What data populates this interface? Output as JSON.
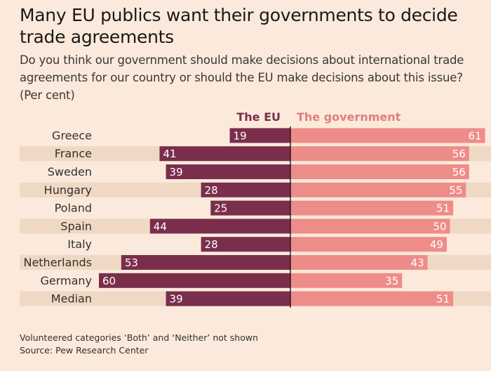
{
  "chart_data": {
    "type": "bar",
    "title": "Many EU publics want their governments to decide trade agreements",
    "subtitle": "Do you think our government should make decisions about international trade agreements for our country or should the EU make decisions about this issue?",
    "unit_label": "(Per cent)",
    "categories": [
      "Greece",
      "France",
      "Sweden",
      "Hungary",
      "Poland",
      "Spain",
      "Italy",
      "Netherlands",
      "Germany",
      "Median"
    ],
    "series": [
      {
        "name": "The EU",
        "values": [
          19,
          41,
          39,
          28,
          25,
          44,
          28,
          53,
          60,
          39
        ],
        "color": "#7a2e4c"
      },
      {
        "name": "The government",
        "values": [
          61,
          56,
          56,
          55,
          51,
          50,
          49,
          43,
          35,
          51
        ],
        "color": "#ee8c89"
      }
    ],
    "band_color": "#efd9c5",
    "divider_color": "#1a1817"
  },
  "footnote": "Volunteered categories ‘Both’ and ‘Neither’ not shown",
  "source": "Source: Pew Research Center"
}
